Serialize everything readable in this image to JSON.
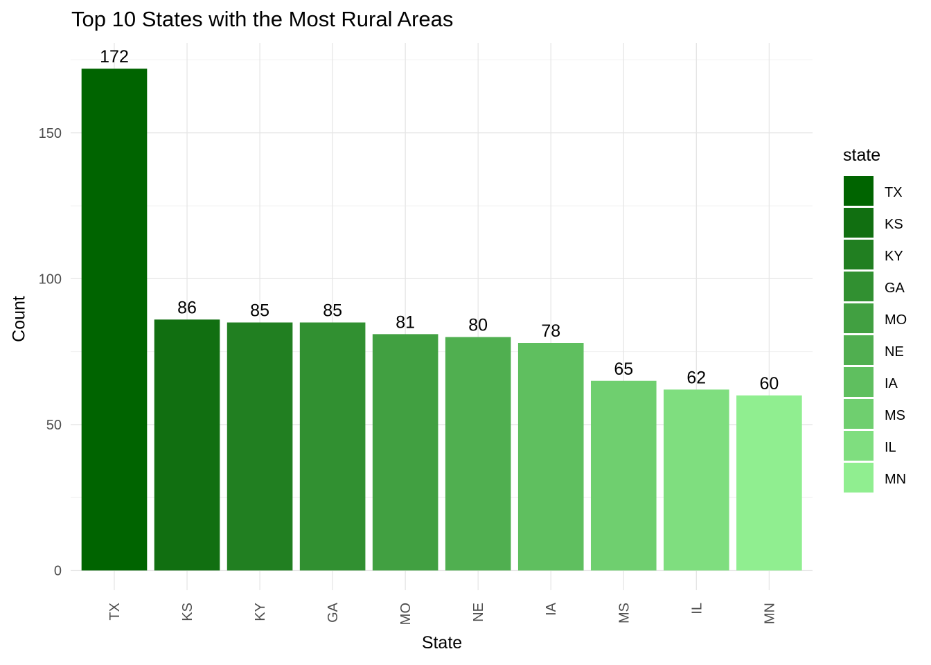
{
  "chart_data": {
    "type": "bar",
    "title": "Top 10 States with the Most Rural Areas",
    "xlabel": "State",
    "ylabel": "Count",
    "categories": [
      "TX",
      "KS",
      "KY",
      "GA",
      "MO",
      "NE",
      "IA",
      "MS",
      "IL",
      "MN"
    ],
    "values": [
      172,
      86,
      85,
      85,
      81,
      80,
      78,
      65,
      62,
      60
    ],
    "colors": [
      "#006400",
      "#116F11",
      "#217F21",
      "#319031",
      "#41A041",
      "#50AF50",
      "#5FBF5F",
      "#6FCF6F",
      "#7FDE7F",
      "#90EE90"
    ],
    "ylim": [
      0,
      180
    ],
    "yticks": [
      0,
      50,
      100,
      150
    ],
    "grid": true,
    "legend": {
      "title": "state",
      "placement": "right",
      "entries": [
        "TX",
        "KS",
        "KY",
        "GA",
        "MO",
        "NE",
        "IA",
        "MS",
        "IL",
        "MN"
      ]
    }
  }
}
